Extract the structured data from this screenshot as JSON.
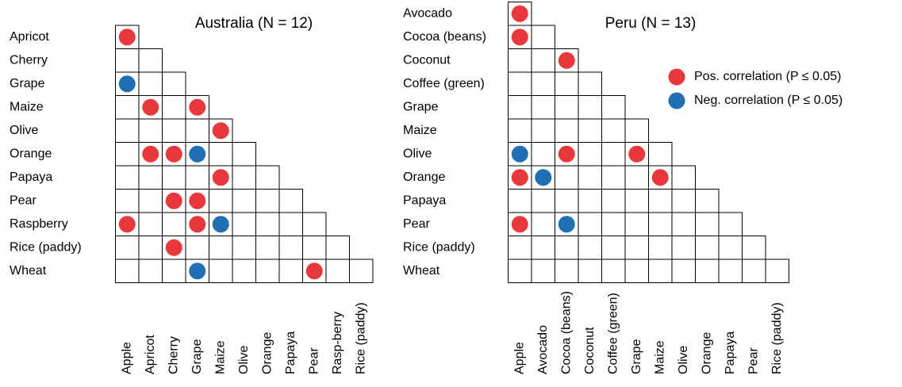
{
  "chart_data": [
    {
      "type": "matrix",
      "title": "Australia (N = 12)",
      "rows": [
        "Apricot",
        "Cherry",
        "Grape",
        "Maize",
        "Olive",
        "Orange",
        "Papaya",
        "Pear",
        "Raspberry",
        "Rice (paddy)",
        "Wheat"
      ],
      "columns": [
        "Apple",
        "Apricot",
        "Cherry",
        "Grape",
        "Maize",
        "Olive",
        "Orange",
        "Papaya",
        "Pear",
        "Rasp-berry",
        "Rice (paddy)"
      ],
      "values": [
        [
          1
        ],
        [
          0,
          0
        ],
        [
          -1,
          0,
          0
        ],
        [
          0,
          1,
          0,
          1
        ],
        [
          0,
          0,
          0,
          0,
          1
        ],
        [
          0,
          1,
          1,
          -1,
          0,
          0
        ],
        [
          0,
          0,
          0,
          0,
          1,
          0,
          0
        ],
        [
          0,
          0,
          1,
          1,
          0,
          0,
          0,
          0
        ],
        [
          1,
          0,
          0,
          1,
          -1,
          0,
          0,
          0,
          0
        ],
        [
          0,
          0,
          1,
          0,
          0,
          0,
          0,
          0,
          0,
          0
        ],
        [
          0,
          0,
          0,
          -1,
          0,
          0,
          0,
          0,
          1,
          0,
          0
        ]
      ]
    },
    {
      "type": "matrix",
      "title": "Peru (N = 13)",
      "rows": [
        "Avocado",
        "Cocoa (beans)",
        "Coconut",
        "Coffee (green)",
        "Grape",
        "Maize",
        "Olive",
        "Orange",
        "Papaya",
        "Pear",
        "Rice (paddy)",
        "Wheat"
      ],
      "columns": [
        "Apple",
        "Avocado",
        "Cocoa (beans)",
        "Coconut",
        "Coffee (green)",
        "Grape",
        "Maize",
        "Olive",
        "Orange",
        "Papaya",
        "Pear",
        "Rice (paddy)"
      ],
      "values": [
        [
          1
        ],
        [
          1,
          0
        ],
        [
          0,
          0,
          1
        ],
        [
          0,
          0,
          0,
          0
        ],
        [
          0,
          0,
          0,
          0,
          0
        ],
        [
          0,
          0,
          0,
          0,
          0,
          0
        ],
        [
          -1,
          0,
          1,
          0,
          0,
          1,
          0
        ],
        [
          1,
          -1,
          0,
          0,
          0,
          0,
          1,
          0
        ],
        [
          0,
          0,
          0,
          0,
          0,
          0,
          0,
          0,
          0
        ],
        [
          1,
          0,
          -1,
          0,
          0,
          0,
          0,
          0,
          0,
          0
        ],
        [
          0,
          0,
          0,
          0,
          0,
          0,
          0,
          0,
          0,
          0,
          0
        ],
        [
          0,
          0,
          0,
          0,
          0,
          0,
          0,
          0,
          0,
          0,
          0,
          0
        ]
      ]
    }
  ],
  "legend": [
    {
      "name": "Pos. correlation (P ≤ 0.05)",
      "color": "#e8383b",
      "sign": 1
    },
    {
      "name": "Neg. correlation (P ≤ 0.05)",
      "color": "#1f6fb5",
      "sign": -1
    }
  ]
}
